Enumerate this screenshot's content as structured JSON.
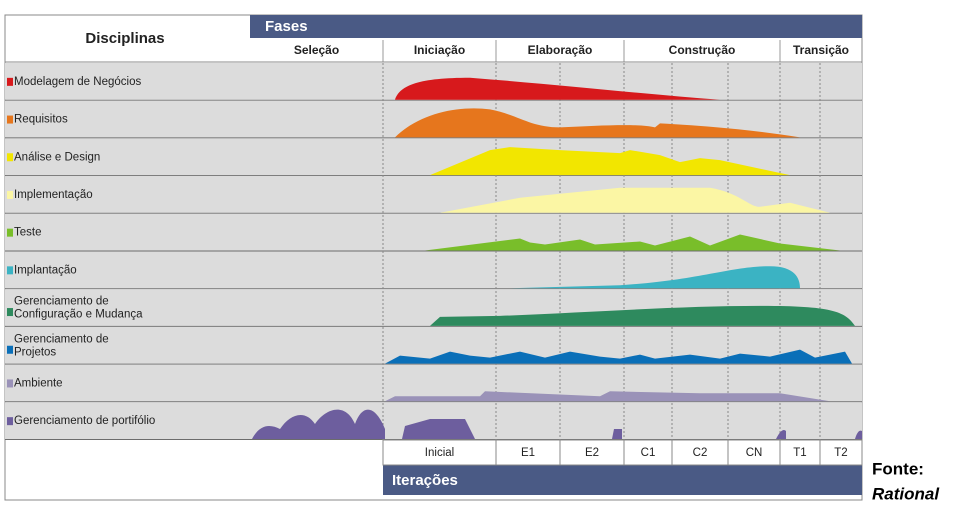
{
  "header": {
    "title": "Disciplinas",
    "phases_title": "Fases",
    "iterations_title": "Iterações"
  },
  "phases": [
    "Seleção",
    "Iniciação",
    "Elaboração",
    "Construção",
    "Transição"
  ],
  "disciplines": [
    {
      "name": [
        "Modelagem de Negócios"
      ],
      "color": "#d7191c"
    },
    {
      "name": [
        "Requisitos"
      ],
      "color": "#e6761d"
    },
    {
      "name": [
        "Análise e Design"
      ],
      "color": "#f2e600"
    },
    {
      "name": [
        "Implementação"
      ],
      "color": "#fbf6a4"
    },
    {
      "name": [
        "Teste"
      ],
      "color": "#79be2a"
    },
    {
      "name": [
        "Implantação"
      ],
      "color": "#3bb3c3"
    },
    {
      "name": [
        "Gerenciamento de",
        "Configuração e Mudança"
      ],
      "color": "#2e8a5e"
    },
    {
      "name": [
        "Gerenciamento de",
        "Projetos"
      ],
      "color": "#0a6fb8"
    },
    {
      "name": [
        "Ambiente"
      ],
      "color": "#9a92b8"
    },
    {
      "name": [
        "Gerenciamento de portifólio"
      ],
      "color": "#6d5e9e"
    }
  ],
  "iterations": [
    "Inicial",
    "E1",
    "E2",
    "C1",
    "C2",
    "CN",
    "T1",
    "T2"
  ],
  "source": {
    "label": "Fonte:",
    "name": "Rational"
  }
}
